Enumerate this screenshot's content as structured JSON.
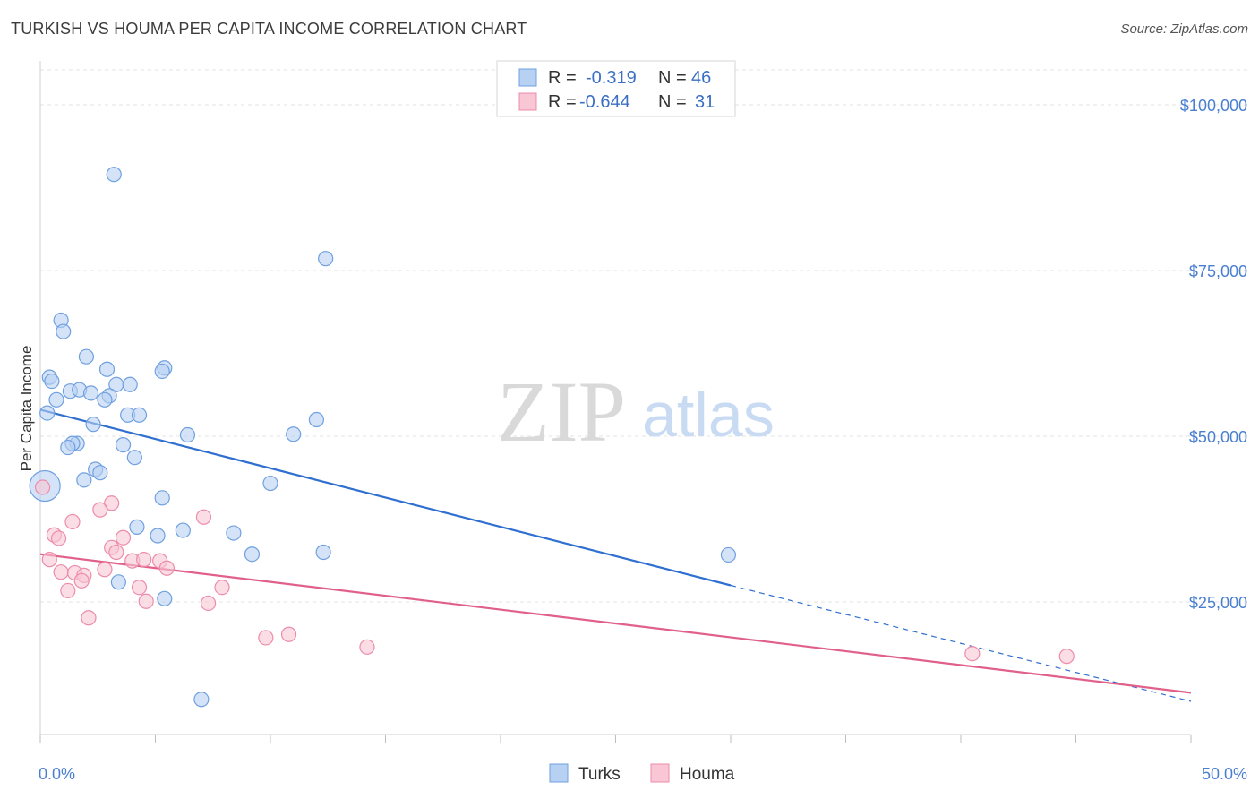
{
  "header": {
    "title": "TURKISH VS HOUMA PER CAPITA INCOME CORRELATION CHART",
    "source": "Source: ZipAtlas.com"
  },
  "watermark": {
    "zip": "ZIP",
    "atlas": "atlas"
  },
  "legend": {
    "r_label": "R =",
    "n_label": "N =",
    "rows": [
      {
        "r": "-0.319",
        "n": "46",
        "fill": "#b7d1f2",
        "stroke": "#6fa0e0"
      },
      {
        "r": "-0.644",
        "n": "31",
        "fill": "#f8c6d5",
        "stroke": "#ec8cab"
      }
    ]
  },
  "bottom_legend": [
    {
      "label": "Turks",
      "fill": "#b7d1f2",
      "stroke": "#6fa0e0"
    },
    {
      "label": "Houma",
      "fill": "#f8c6d5",
      "stroke": "#ec8cab"
    }
  ],
  "chart_data": {
    "type": "scatter",
    "xlabel": "",
    "ylabel": "Per Capita Income",
    "xlim": [
      0,
      50
    ],
    "ylim": [
      5000,
      105000
    ],
    "x_tick_labels": {
      "min": "0.0%",
      "max": "50.0%"
    },
    "y_ticks": [
      {
        "value": 25000,
        "label": "$25,000"
      },
      {
        "value": 50000,
        "label": "$50,000"
      },
      {
        "value": 75000,
        "label": "$75,000"
      },
      {
        "value": 100000,
        "label": "$100,000"
      }
    ],
    "grid": true,
    "series": [
      {
        "name": "Turks",
        "color": "#6fa0e0",
        "fill": "#b7d1f2",
        "line_color": "#2f6fd0",
        "trend": {
          "x0": 0,
          "y0": 54000,
          "x1": 30,
          "y1": 27500,
          "dash_to_x": 50,
          "dash_to_y": 10000
        },
        "points": [
          [
            3.2,
            89500
          ],
          [
            12.4,
            76800
          ],
          [
            0.9,
            67500
          ],
          [
            1.0,
            65800
          ],
          [
            2.0,
            62000
          ],
          [
            2.9,
            60100
          ],
          [
            5.4,
            60300
          ],
          [
            5.3,
            59800
          ],
          [
            0.4,
            58900
          ],
          [
            0.5,
            58300
          ],
          [
            3.3,
            57800
          ],
          [
            3.9,
            57800
          ],
          [
            1.3,
            56800
          ],
          [
            1.7,
            57000
          ],
          [
            2.2,
            56500
          ],
          [
            3.0,
            56100
          ],
          [
            2.8,
            55500
          ],
          [
            0.7,
            55500
          ],
          [
            0.3,
            53500
          ],
          [
            3.8,
            53200
          ],
          [
            4.3,
            53200
          ],
          [
            12.0,
            52500
          ],
          [
            2.3,
            51800
          ],
          [
            6.4,
            50200
          ],
          [
            11.0,
            50300
          ],
          [
            1.6,
            48900
          ],
          [
            1.4,
            48900
          ],
          [
            1.2,
            48300
          ],
          [
            3.6,
            48700
          ],
          [
            4.1,
            46800
          ],
          [
            2.4,
            45000
          ],
          [
            2.6,
            44500
          ],
          [
            1.9,
            43400
          ],
          [
            10.0,
            42900
          ],
          [
            5.3,
            40700
          ],
          [
            4.2,
            36300
          ],
          [
            6.2,
            35800
          ],
          [
            8.4,
            35400
          ],
          [
            5.1,
            35000
          ],
          [
            0.2,
            42500
          ],
          [
            9.2,
            32200
          ],
          [
            12.3,
            32500
          ],
          [
            29.9,
            32100
          ],
          [
            3.4,
            28000
          ],
          [
            5.4,
            25500
          ],
          [
            7.0,
            10300
          ]
        ]
      },
      {
        "name": "Houma",
        "color": "#ec8cab",
        "fill": "#f8c6d5",
        "line_color": "#e0608a",
        "trend": {
          "x0": 0,
          "y0": 32200,
          "x1": 50,
          "y1": 11300
        },
        "points": [
          [
            0.1,
            42300
          ],
          [
            3.1,
            39900
          ],
          [
            2.6,
            38900
          ],
          [
            7.1,
            37800
          ],
          [
            1.4,
            37100
          ],
          [
            0.6,
            35100
          ],
          [
            0.8,
            34600
          ],
          [
            3.6,
            34700
          ],
          [
            3.1,
            33200
          ],
          [
            3.3,
            32500
          ],
          [
            0.4,
            31400
          ],
          [
            4.0,
            31200
          ],
          [
            4.5,
            31400
          ],
          [
            5.2,
            31200
          ],
          [
            5.5,
            30100
          ],
          [
            2.8,
            29900
          ],
          [
            0.9,
            29500
          ],
          [
            1.5,
            29400
          ],
          [
            1.9,
            29000
          ],
          [
            1.8,
            28200
          ],
          [
            4.3,
            27200
          ],
          [
            7.9,
            27200
          ],
          [
            1.2,
            26700
          ],
          [
            4.6,
            25100
          ],
          [
            7.3,
            24800
          ],
          [
            2.1,
            22600
          ],
          [
            9.8,
            19600
          ],
          [
            10.8,
            20100
          ],
          [
            14.2,
            18200
          ],
          [
            40.5,
            17200
          ],
          [
            44.6,
            16800
          ]
        ]
      }
    ]
  }
}
